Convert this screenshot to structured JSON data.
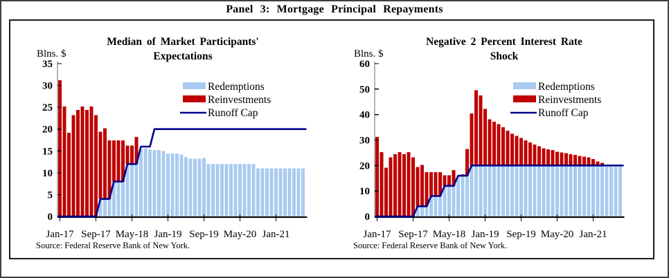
{
  "panel_title": "Panel 3: Mortgage Principal Repayments",
  "source_note": "Source: Federal Reserve Bank of New York.",
  "colors": {
    "redemptions": "#A9CBF0",
    "reinvestments": "#C00000",
    "runoff_cap": "#00008B",
    "axis": "#000000",
    "spine": "#6b6b6b"
  },
  "legend_labels": [
    "Redemptions",
    "Reinvestments",
    "Runoff Cap"
  ],
  "chart_data": [
    {
      "type": "bar",
      "stacked": true,
      "title_lines": [
        "Median of Market Participants'",
        "Expectations"
      ],
      "unit_label": "Blns. $",
      "ylim": [
        0,
        35
      ],
      "yticks": [
        0,
        5,
        10,
        15,
        20,
        25,
        30,
        35
      ],
      "x_start_month": "Jan-17",
      "x_end_month": "Jul-21",
      "n_months": 55,
      "xtick_labels": [
        "Jan-17",
        "Sep-17",
        "May-18",
        "Jan-19",
        "Sep-19",
        "May-20",
        "Jan-21"
      ],
      "xtick_positions": [
        0,
        8,
        16,
        24,
        32,
        40,
        48
      ],
      "grid": false,
      "legend_position": "upper-right",
      "source": "Source: Federal Reserve Bank of New York.",
      "series": [
        {
          "name": "Redemptions",
          "type": "bar",
          "color_key": "redemptions",
          "values": [
            0,
            0,
            0,
            0,
            0,
            0,
            0,
            0,
            0,
            4,
            4,
            4,
            8,
            8,
            8,
            12,
            12,
            12,
            15.4,
            15.6,
            15.4,
            15.2,
            15.2,
            15.0,
            14.4,
            14.4,
            14.4,
            14.2,
            13.6,
            13.2,
            13.2,
            13.2,
            13.4,
            12,
            12,
            12,
            12,
            12,
            12,
            12,
            12,
            12,
            12,
            12,
            11,
            11,
            11,
            11,
            11,
            11,
            11,
            11,
            11,
            11,
            11
          ]
        },
        {
          "name": "Reinvestments",
          "type": "bar",
          "color_key": "reinvestments",
          "values": [
            31.2,
            25.2,
            19.2,
            23.2,
            24.4,
            25.2,
            24.4,
            25.2,
            23.2,
            15.4,
            16.2,
            13.4,
            9.4,
            9.4,
            9.4,
            4.2,
            4.2,
            6.2,
            0,
            0,
            0,
            0,
            0,
            0,
            0,
            0,
            0,
            0,
            0,
            0,
            0,
            0,
            0,
            0,
            0,
            0,
            0,
            0,
            0,
            0,
            0,
            0,
            0,
            0,
            0,
            0,
            0,
            0,
            0,
            0,
            0,
            0,
            0,
            0,
            0
          ]
        },
        {
          "name": "Runoff Cap",
          "type": "line",
          "color_key": "runoff_cap",
          "values": [
            0,
            0,
            0,
            0,
            0,
            0,
            0,
            0,
            0,
            4,
            4,
            4,
            8,
            8,
            8,
            12,
            12,
            12,
            16,
            16,
            16,
            20,
            20,
            20,
            20,
            20,
            20,
            20,
            20,
            20,
            20,
            20,
            20,
            20,
            20,
            20,
            20,
            20,
            20,
            20,
            20,
            20,
            20,
            20,
            20,
            20,
            20,
            20,
            20,
            20,
            20,
            20,
            20,
            20,
            20
          ]
        }
      ]
    },
    {
      "type": "bar",
      "stacked": true,
      "title_lines": [
        "Negative 2 Percent Interest Rate",
        "Shock"
      ],
      "unit_label": "Blns. $",
      "ylim": [
        0,
        60
      ],
      "yticks": [
        0,
        10,
        20,
        30,
        40,
        50,
        60
      ],
      "x_start_month": "Jan-17",
      "x_end_month": "Jul-21",
      "n_months": 55,
      "xtick_labels": [
        "Jan-17",
        "Sep-17",
        "May-18",
        "Jan-19",
        "Sep-19",
        "May-20",
        "Jan-21"
      ],
      "xtick_positions": [
        0,
        8,
        16,
        24,
        32,
        40,
        48
      ],
      "grid": false,
      "legend_position": "upper-right",
      "source": "Source: Federal Reserve Bank of New York.",
      "series": [
        {
          "name": "Redemptions",
          "type": "bar",
          "color_key": "redemptions",
          "values": [
            0,
            0,
            0,
            0,
            0,
            0,
            0,
            0,
            0,
            4,
            4,
            4,
            8,
            8,
            8,
            12,
            12,
            12,
            15.6,
            16,
            16,
            20,
            20,
            20,
            20,
            20,
            20,
            20,
            20,
            20,
            20,
            20,
            20,
            20,
            20,
            20,
            20,
            20,
            20,
            20,
            20,
            20,
            20,
            20,
            20,
            20,
            20,
            20,
            20,
            20,
            20,
            19.6,
            19.6,
            19.6,
            19.6
          ]
        },
        {
          "name": "Reinvestments",
          "type": "bar",
          "color_key": "reinvestments",
          "values": [
            31.2,
            25.2,
            19.2,
            23.2,
            24.4,
            25.2,
            24.4,
            25.2,
            23.2,
            15.4,
            16.2,
            13.4,
            9.4,
            9.4,
            9.4,
            4.2,
            4.2,
            6.2,
            0,
            0.6,
            10.5,
            20.5,
            29.5,
            27.5,
            22.2,
            18.2,
            17.2,
            16.2,
            15.0,
            13.6,
            12.4,
            11.6,
            10.8,
            9.8,
            9.0,
            8.2,
            7.5,
            6.8,
            6.4,
            6.0,
            5.4,
            5.1,
            4.8,
            4.5,
            4.2,
            3.8,
            3.5,
            3.2,
            2.6,
            1.6,
            1.0,
            0,
            0,
            0,
            0
          ]
        },
        {
          "name": "Runoff Cap",
          "type": "line",
          "color_key": "runoff_cap",
          "values": [
            0,
            0,
            0,
            0,
            0,
            0,
            0,
            0,
            0,
            4,
            4,
            4,
            8,
            8,
            8,
            12,
            12,
            12,
            16,
            16,
            16,
            20,
            20,
            20,
            20,
            20,
            20,
            20,
            20,
            20,
            20,
            20,
            20,
            20,
            20,
            20,
            20,
            20,
            20,
            20,
            20,
            20,
            20,
            20,
            20,
            20,
            20,
            20,
            20,
            20,
            20,
            20,
            20,
            20,
            20
          ]
        }
      ]
    }
  ]
}
